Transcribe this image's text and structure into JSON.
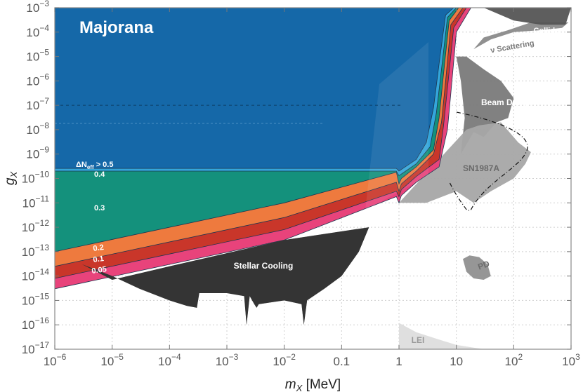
{
  "chart_data": {
    "type": "area",
    "title": "Majorana",
    "xlabel": "m_X [MeV]",
    "ylabel": "g_X",
    "x_scale": "log",
    "y_scale": "log",
    "xlim": [
      1e-06,
      1000
    ],
    "ylim": [
      1e-17,
      0.001
    ],
    "grid": true,
    "x_ticks": [
      {
        "value": 1e-06,
        "base": "10",
        "exp": "−6"
      },
      {
        "value": 1e-05,
        "base": "10",
        "exp": "−5"
      },
      {
        "value": 0.0001,
        "base": "10",
        "exp": "−4"
      },
      {
        "value": 0.001,
        "base": "10",
        "exp": "−3"
      },
      {
        "value": 0.01,
        "base": "10",
        "exp": "−2"
      },
      {
        "value": 0.1,
        "base": "0.1",
        "exp": ""
      },
      {
        "value": 1,
        "base": "1",
        "exp": ""
      },
      {
        "value": 10,
        "base": "10",
        "exp": ""
      },
      {
        "value": 100,
        "base": "10",
        "exp": "2"
      },
      {
        "value": 1000,
        "base": "10",
        "exp": "3"
      }
    ],
    "y_ticks": [
      {
        "value": 0.001,
        "base": "10",
        "exp": "−3"
      },
      {
        "value": 0.0001,
        "base": "10",
        "exp": "−4"
      },
      {
        "value": 1e-05,
        "base": "10",
        "exp": "−5"
      },
      {
        "value": 1e-06,
        "base": "10",
        "exp": "−6"
      },
      {
        "value": 1e-07,
        "base": "10",
        "exp": "−7"
      },
      {
        "value": 1e-08,
        "base": "10",
        "exp": "−8"
      },
      {
        "value": 1e-09,
        "base": "10",
        "exp": "−9"
      },
      {
        "value": 1e-10,
        "base": "10",
        "exp": "−10"
      },
      {
        "value": 1e-11,
        "base": "10",
        "exp": "−11"
      },
      {
        "value": 1e-12,
        "base": "10",
        "exp": "−12"
      },
      {
        "value": 1e-13,
        "base": "10",
        "exp": "−13"
      },
      {
        "value": 1e-14,
        "base": "10",
        "exp": "−14"
      },
      {
        "value": 1e-15,
        "base": "10",
        "exp": "−15"
      },
      {
        "value": 1e-16,
        "base": "10",
        "exp": "−16"
      },
      {
        "value": 1e-17,
        "base": "10",
        "exp": "−17"
      }
    ],
    "neff_header": "ΔN_eff > 0.5",
    "series": [
      {
        "name": "0.05",
        "color": "#e8437b",
        "boundary": [
          [
            1e-06,
            3e-15
          ],
          [
            0.01,
            3e-13
          ],
          [
            0.9,
            1.8e-11
          ],
          [
            1,
            1e-11
          ],
          [
            1.1,
            2e-11
          ],
          [
            2,
            7e-11
          ],
          [
            5,
            3e-10
          ],
          [
            7,
            1e-08
          ],
          [
            8,
            3e-07
          ],
          [
            10,
            0.0001
          ],
          [
            18,
            0.001
          ]
        ]
      },
      {
        "name": "0.1",
        "color": "#c9362a",
        "boundary": [
          [
            1e-06,
            8e-15
          ],
          [
            0.01,
            8e-13
          ],
          [
            0.9,
            3e-11
          ],
          [
            1,
            1.8e-11
          ],
          [
            1.1,
            3.5e-11
          ],
          [
            2,
            1.2e-10
          ],
          [
            5,
            6e-10
          ],
          [
            6,
            1.5e-08
          ],
          [
            7,
            5e-07
          ],
          [
            9,
            0.00015
          ],
          [
            15,
            0.001
          ]
        ]
      },
      {
        "name": "0.2",
        "color": "#ee7a3e",
        "boundary": [
          [
            1e-06,
            2.5e-14
          ],
          [
            0.01,
            2.5e-12
          ],
          [
            0.9,
            7e-11
          ],
          [
            1,
            3e-11
          ],
          [
            1.1,
            6e-11
          ],
          [
            2,
            2e-10
          ],
          [
            4,
            1e-09
          ],
          [
            5.5,
            2e-08
          ],
          [
            6.5,
            1e-06
          ],
          [
            8,
            0.0002
          ],
          [
            13,
            0.001
          ]
        ]
      },
      {
        "name": "0.3",
        "color": "#14917c",
        "boundary": [
          [
            1e-06,
            1e-13
          ],
          [
            0.01,
            1e-11
          ],
          [
            0.9,
            1.8e-10
          ],
          [
            1,
            6e-11
          ],
          [
            1.1,
            1e-10
          ],
          [
            2,
            3e-10
          ],
          [
            4,
            1.5e-09
          ],
          [
            5,
            3e-08
          ],
          [
            6,
            2e-06
          ],
          [
            7.5,
            0.0003
          ],
          [
            11,
            0.001
          ]
        ]
      },
      {
        "name": "0.4",
        "color": "#33a6db",
        "boundary": [
          [
            1e-06,
            2e-10
          ],
          [
            0.9,
            2e-10
          ],
          [
            1,
            1.3e-10
          ],
          [
            2,
            4e-10
          ],
          [
            3.5,
            2e-09
          ],
          [
            4.5,
            5e-08
          ],
          [
            5.5,
            3e-06
          ],
          [
            7,
            0.0004
          ],
          [
            10,
            0.001
          ]
        ]
      },
      {
        "name": "ΔN_eff > 0.5",
        "color": "#1568a8",
        "boundary": [
          [
            1e-06,
            2.6e-10
          ],
          [
            0.9,
            2.6e-10
          ],
          [
            1,
            2e-10
          ],
          [
            2,
            6e-10
          ],
          [
            3,
            3e-09
          ],
          [
            4,
            8e-08
          ],
          [
            5,
            5e-06
          ],
          [
            6.5,
            0.0005
          ],
          [
            9,
            0.001
          ]
        ]
      }
    ],
    "constraints": [
      {
        "name": "Stellar Cooling",
        "color": "#3a3a3a",
        "polygon": [
          [
            3e-06,
            3e-14
          ],
          [
            1e-05,
            1e-14
          ],
          [
            3e-05,
            3e-15
          ],
          [
            0.0001,
            1e-15
          ],
          [
            0.0002,
            6e-16
          ],
          [
            0.0003,
            5e-16
          ],
          [
            0.00033,
            2e-15
          ],
          [
            0.001,
            2e-15
          ],
          [
            0.002,
            1.5e-15
          ],
          [
            0.0022,
            1e-16
          ],
          [
            0.0025,
            1.5e-15
          ],
          [
            0.003,
            7e-16
          ],
          [
            0.0033,
            5e-16
          ],
          [
            0.0036,
            7e-16
          ],
          [
            0.01,
            1e-15
          ],
          [
            0.02,
            7e-16
          ],
          [
            0.022,
            1e-16
          ],
          [
            0.025,
            1e-15
          ],
          [
            0.05,
            3e-15
          ],
          [
            0.1,
            1e-14
          ],
          [
            0.2,
            1e-13
          ],
          [
            0.3,
            1e-12
          ],
          [
            0.01,
            3e-13
          ],
          [
            0.0001,
            2.5e-14
          ],
          [
            1e-05,
            7e-15
          ]
        ]
      },
      {
        "name": "Beam Dump",
        "color": "#7a7a7a",
        "polygon": [
          [
            12,
            1e-09
          ],
          [
            14,
            3e-08
          ],
          [
            12,
            1e-06
          ],
          [
            10,
            1e-05
          ],
          [
            15,
            1e-05
          ],
          [
            30,
            3e-06
          ],
          [
            60,
            1e-06
          ],
          [
            100,
            2e-07
          ],
          [
            80,
            3e-08
          ],
          [
            50,
            2e-08
          ],
          [
            30,
            5e-09
          ],
          [
            20,
            8e-09
          ]
        ]
      },
      {
        "name": "SN1987A",
        "color": "#a6a6a6",
        "polygon": [
          [
            1,
            1e-11
          ],
          [
            3,
            1e-11
          ],
          [
            10,
            3e-11
          ],
          [
            20,
            1e-11
          ],
          [
            40,
            3e-11
          ],
          [
            100,
            1e-10
          ],
          [
            160,
            4e-10
          ],
          [
            200,
            1.2e-09
          ],
          [
            120,
            3e-09
          ],
          [
            60,
            2e-08
          ],
          [
            25,
            1.5e-08
          ],
          [
            15,
            1e-08
          ]
        ]
      },
      {
        "name": "ν Scattering",
        "color": "#8a8a8a",
        "polygon": [
          [
            20,
            2e-05
          ],
          [
            40,
            5e-05
          ],
          [
            100,
            0.0001
          ],
          [
            300,
            0.00012
          ],
          [
            700,
            0.00015
          ],
          [
            900,
            0.00025
          ],
          [
            500,
            0.00025
          ],
          [
            200,
            0.00025
          ],
          [
            80,
            0.00012
          ],
          [
            30,
            6e-05
          ]
        ]
      },
      {
        "name": "Collider",
        "color": "#555555",
        "polygon": [
          [
            30,
            0.001
          ],
          [
            100,
            0.0003
          ],
          [
            300,
            0.0002
          ],
          [
            800,
            0.0002
          ],
          [
            1000,
            0.001
          ]
        ]
      },
      {
        "name": "PD",
        "color": "#909090",
        "polygon": [
          [
            13,
            5e-14
          ],
          [
            15,
            1.5e-14
          ],
          [
            20,
            8e-15
          ],
          [
            30,
            7e-15
          ],
          [
            40,
            1e-14
          ],
          [
            35,
            3e-14
          ],
          [
            25,
            6e-14
          ],
          [
            17,
            7e-14
          ]
        ]
      },
      {
        "name": "LEI",
        "color": "#dddddd",
        "polygon": [
          [
            1,
            1e-17
          ],
          [
            1,
            1.2e-16
          ],
          [
            2,
            5e-17
          ],
          [
            5,
            2.5e-17
          ],
          [
            10,
            1.5e-17
          ],
          [
            30,
            1e-17
          ]
        ]
      }
    ],
    "labels": [
      {
        "text": "Majorana",
        "color": "#ffffff",
        "size": 24
      },
      {
        "text": "ΔN_eff > 0.5",
        "color": "#ffffff",
        "size": 11
      },
      {
        "text": "0.4",
        "color": "#ffffff",
        "size": 11
      },
      {
        "text": "0.3",
        "color": "#ffffff",
        "size": 11
      },
      {
        "text": "0.2",
        "color": "#ffffff",
        "size": 11
      },
      {
        "text": "0.1",
        "color": "#ffffff",
        "size": 11
      },
      {
        "text": "0.05",
        "color": "#ffffff",
        "size": 11
      },
      {
        "text": "Stellar Cooling",
        "color": "#ffffff",
        "size": 12
      },
      {
        "text": "Beam Dump",
        "color": "#ffffff",
        "size": 12
      },
      {
        "text": "SN1987A",
        "color": "#6a6a6a",
        "size": 12
      },
      {
        "text": "ν Scattering",
        "color": "#7a7a7a",
        "size": 11
      },
      {
        "text": "Collider",
        "color": "#ffffff",
        "size": 11
      },
      {
        "text": "PD",
        "color": "#6a6a6a",
        "size": 12
      },
      {
        "text": "LEI",
        "color": "#9a9a9a",
        "size": 12
      }
    ]
  }
}
